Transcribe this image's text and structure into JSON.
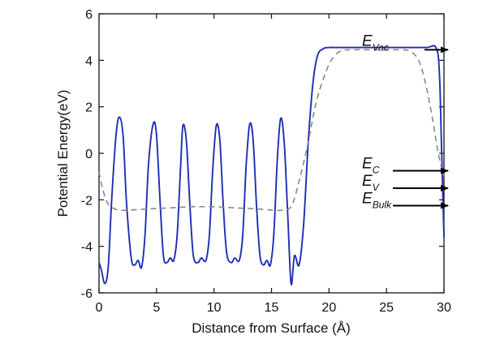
{
  "chart_data": {
    "type": "line",
    "xlabel": "Distance from Surface (Å)",
    "ylabel": "Potential Energy(eV)",
    "xlim": [
      0,
      30
    ],
    "ylim": [
      -6,
      6
    ],
    "x_ticks": [
      "0",
      "5",
      "10",
      "15",
      "20",
      "25",
      "30"
    ],
    "y_ticks": [
      "-6",
      "-4",
      "-2",
      "0",
      "2",
      "4",
      "6"
    ],
    "grid": false,
    "legend": "none",
    "series": [
      {
        "style": "solid",
        "color": "#1f2db5",
        "x": [
          0,
          0.2,
          0.5,
          0.8,
          1.1,
          1.5,
          1.8,
          2.1,
          2.4,
          2.8,
          3.1,
          3.4,
          3.7,
          4.0,
          4.3,
          4.7,
          5.0,
          5.3,
          5.6,
          5.9,
          6.2,
          6.5,
          6.8,
          7.1,
          7.3,
          7.6,
          7.9,
          8.2,
          8.6,
          8.9,
          9.3,
          9.6,
          9.9,
          10.2,
          10.5,
          10.8,
          11.1,
          11.5,
          11.8,
          12.2,
          12.5,
          12.8,
          13.1,
          13.4,
          13.7,
          14.0,
          14.3,
          14.6,
          14.9,
          15.2,
          15.5,
          15.8,
          16.1,
          16.4,
          16.7,
          17.0,
          17.4,
          17.8,
          18.2,
          18.6,
          19.0,
          19.5,
          20.0,
          21.0,
          23.0,
          25.0,
          27.0,
          28.5,
          29.3,
          29.6,
          29.8,
          30.0
        ],
        "y": [
          -4.7,
          -5.0,
          -5.6,
          -4.9,
          -2.0,
          0.9,
          1.55,
          0.7,
          -2.2,
          -4.5,
          -4.8,
          -4.6,
          -4.9,
          -3.5,
          -0.5,
          1.25,
          0.8,
          -2.0,
          -4.4,
          -4.7,
          -4.5,
          -4.6,
          -3.5,
          -0.5,
          1.2,
          0.5,
          -2.2,
          -4.4,
          -4.7,
          -4.5,
          -4.6,
          -3.5,
          -0.6,
          1.2,
          0.6,
          -2.2,
          -4.3,
          -4.7,
          -4.5,
          -4.6,
          -3.5,
          -0.5,
          1.25,
          0.6,
          -2.3,
          -4.4,
          -4.8,
          -4.6,
          -4.8,
          -3.5,
          -0.3,
          1.5,
          0.5,
          -2.5,
          -5.6,
          -4.4,
          -4.8,
          -3.0,
          0.5,
          3.0,
          4.2,
          4.5,
          4.55,
          4.55,
          4.55,
          4.55,
          4.55,
          4.55,
          4.55,
          3.5,
          0.0,
          -3.6
        ]
      },
      {
        "style": "dashed",
        "color": "#888888",
        "x": [
          0,
          0.3,
          0.7,
          1.2,
          2.0,
          4.0,
          6.0,
          8.0,
          10.0,
          12.0,
          14.0,
          16.0,
          16.8,
          17.5,
          18.2,
          18.8,
          19.5,
          20.2,
          21.0,
          22.0,
          24.0,
          26.0,
          27.0,
          27.8,
          28.4,
          29.0,
          29.5,
          30.0
        ],
        "y": [
          -0.8,
          -1.5,
          -2.1,
          -2.35,
          -2.45,
          -2.4,
          -2.35,
          -2.3,
          -2.3,
          -2.35,
          -2.4,
          -2.45,
          -2.2,
          -1.0,
          0.5,
          2.0,
          3.2,
          4.0,
          4.4,
          4.45,
          4.45,
          4.45,
          4.4,
          4.0,
          3.0,
          1.5,
          0.0,
          -1.0
        ]
      }
    ],
    "annotations": [
      {
        "main": "E",
        "sub": "Vac",
        "y": 4.45
      },
      {
        "main": "E",
        "sub": "C",
        "y": -0.75
      },
      {
        "main": "E",
        "sub": "V",
        "y": -1.5
      },
      {
        "main": "E",
        "sub": "Bulk",
        "y": -2.25
      }
    ]
  }
}
